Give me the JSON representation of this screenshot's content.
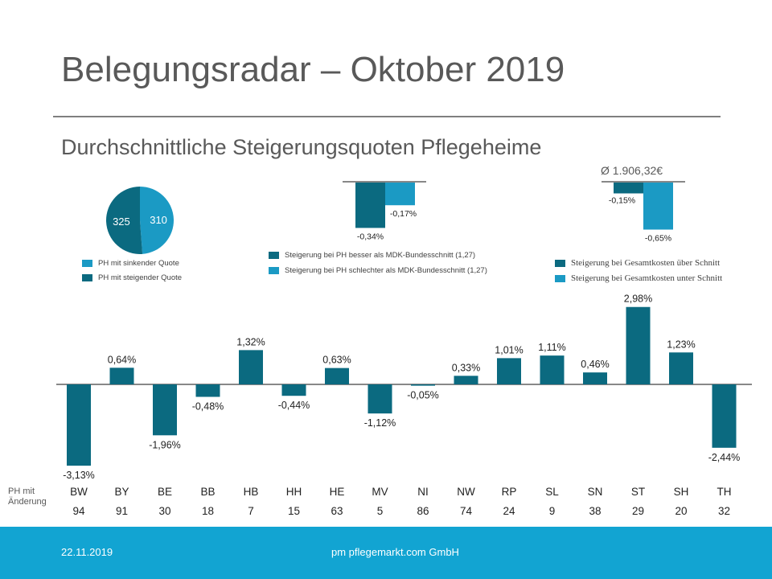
{
  "page": {
    "title": "Belegungsradar – Oktober 2019",
    "subtitle": "Durchschnittliche Steigerungsquoten Pflegeheime",
    "average_cost": "Ø 1.906,32€",
    "ph_label_line1": "PH mit",
    "ph_label_line2": "Änderung"
  },
  "colors": {
    "dark": "#0b6a80",
    "light": "#1b9ac4",
    "bar": "#0b6a80",
    "footer": "#12a4d2"
  },
  "footer": {
    "date": "22.11.2019",
    "company": "pm pflegemarkt.com GmbH"
  },
  "legends": {
    "pie": [
      "PH  mit sinkender Quote",
      "PH  mit steigender Quote"
    ],
    "middle": [
      "Steigerung bei PH  besser als MDK-Bundesschnitt (1,27)",
      "Steigerung bei PH  schlechter als MDK-Bundesschnitt (1,27)"
    ],
    "right": [
      "Steigerung bei Gesamtkosten über Schnitt",
      "Steigerung bei Gesamtkosten unter Schnitt"
    ]
  },
  "chart_data": [
    {
      "type": "pie",
      "title": "",
      "slices": [
        {
          "label": "PH mit sinkender Quote",
          "value": 310,
          "display": "310"
        },
        {
          "label": "PH mit steigender Quote",
          "value": 325,
          "display": "325"
        }
      ]
    },
    {
      "type": "bar",
      "title": "",
      "categories": [
        "besser als MDK-Bundesschnitt",
        "schlechter als MDK-Bundesschnitt"
      ],
      "values": [
        -0.34,
        -0.17
      ],
      "labels": [
        "-0,34%",
        "-0,17%"
      ]
    },
    {
      "type": "bar",
      "title": "",
      "categories": [
        "Gesamtkosten über Schnitt",
        "Gesamtkosten unter Schnitt"
      ],
      "values": [
        -0.15,
        -0.65
      ],
      "labels": [
        "-0,15%",
        "-0,65%"
      ]
    },
    {
      "type": "bar",
      "title": "",
      "xlabel": "",
      "ylabel": "",
      "ylim": [
        -3.13,
        2.98
      ],
      "categories": [
        "BW",
        "BY",
        "BE",
        "BB",
        "HB",
        "HH",
        "HE",
        "MV",
        "NI",
        "NW",
        "RP",
        "SL",
        "SN",
        "ST",
        "SH",
        "TH"
      ],
      "values": [
        -3.13,
        0.64,
        -1.96,
        -0.48,
        1.32,
        -0.44,
        0.63,
        -1.12,
        -0.05,
        0.33,
        1.01,
        1.11,
        0.46,
        2.98,
        1.23,
        -2.44
      ],
      "labels": [
        "-3,13%",
        "0,64%",
        "-1,96%",
        "-0,48%",
        "1,32%",
        "-0,44%",
        "0,63%",
        "-1,12%",
        "-0,05%",
        "0,33%",
        "1,01%",
        "1,11%",
        "0,46%",
        "2,98%",
        "1,23%",
        "-2,44%"
      ],
      "ph_counts": [
        "94",
        "91",
        "30",
        "18",
        "7",
        "15",
        "63",
        "5",
        "86",
        "74",
        "24",
        "9",
        "38",
        "29",
        "20",
        "32"
      ]
    }
  ]
}
